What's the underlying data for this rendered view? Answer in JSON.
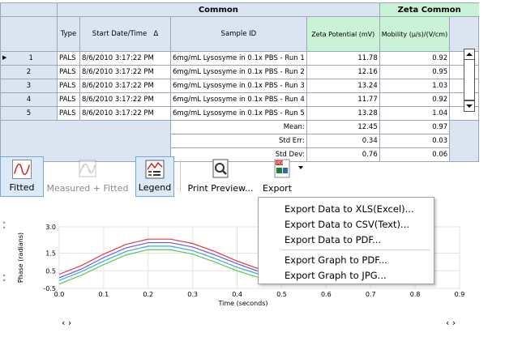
{
  "table": {
    "group_headers": {
      "common": "Common",
      "zeta": "Zeta Common"
    },
    "columns": {
      "type": "Type",
      "start": "Start Date/Time",
      "sort_glyph": "Δ",
      "sample": "Sample ID",
      "zeta": "Zeta Potential (mV)",
      "mobility": "Mobility (µ/s)/(V/cm)"
    },
    "rows": [
      {
        "num": "1",
        "type": "PALS",
        "start": "8/6/2010 3:17:22 PM",
        "sample": "6mg/mL Lysosyme in 0.1x PBS - Run 1",
        "zeta": "11.78",
        "mobility": "0.92"
      },
      {
        "num": "2",
        "type": "PALS",
        "start": "8/6/2010 3:17:22 PM",
        "sample": "6mg/mL Lysosyme in 0.1x PBS - Run 2",
        "zeta": "12.16",
        "mobility": "0.95"
      },
      {
        "num": "3",
        "type": "PALS",
        "start": "8/6/2010 3:17:22 PM",
        "sample": "6mg/mL Lysosyme in 0.1x PBS - Run 3",
        "zeta": "13.24",
        "mobility": "1.03"
      },
      {
        "num": "4",
        "type": "PALS",
        "start": "8/6/2010 3:17:22 PM",
        "sample": "6mg/mL Lysosyme in 0.1x PBS - Run 4",
        "zeta": "11.77",
        "mobility": "0.92"
      },
      {
        "num": "5",
        "type": "PALS",
        "start": "8/6/2010 3:17:22 PM",
        "sample": "6mg/mL Lysosyme in 0.1x PBS - Run 5",
        "zeta": "13.28",
        "mobility": "1.04"
      }
    ],
    "stats": [
      {
        "label": "Mean:",
        "zeta": "12.45",
        "mobility": "0.97"
      },
      {
        "label": "Std Err:",
        "zeta": "0.34",
        "mobility": "0.03"
      },
      {
        "label": "Std Dev:",
        "zeta": "0.76",
        "mobility": "0.06"
      }
    ],
    "row_indicator": "▶"
  },
  "toolbar": {
    "fitted": "Fitted",
    "measured_fitted": "Measured + Fitted",
    "legend": "Legend",
    "print_preview": "Print Preview...",
    "export": "Export",
    "export_icon_text": "PDF"
  },
  "export_menu": {
    "xls": "Export Data to XLS(Excel)...",
    "csv": "Export Data to CSV(Text)...",
    "pdf_data": "Export Data to PDF...",
    "pdf_graph": "Export Graph to PDF...",
    "jpg_graph": "Export Graph to JPG..."
  },
  "chart_data": {
    "type": "line",
    "xlabel": "Time (seconds)",
    "ylabel": "Phase (radians)",
    "xlim": [
      0.0,
      0.9
    ],
    "ylim": [
      -0.5,
      3.0
    ],
    "x_ticks": [
      "0.0",
      "0.1",
      "0.2",
      "0.3",
      "0.4",
      "0.5",
      "0.6",
      "0.7",
      "0.8",
      "0.9"
    ],
    "y_ticks": [
      "-0.5",
      "0.5",
      "1.5",
      "3.0"
    ],
    "y_tick_values": [
      -0.5,
      0.5,
      1.5,
      3.0
    ],
    "grid": true,
    "series": [
      {
        "color": "#e03a3a",
        "values": {
          "x": [
            0.0,
            0.05,
            0.1,
            0.15,
            0.2,
            0.25,
            0.3,
            0.35,
            0.4,
            0.45,
            0.5
          ],
          "y": [
            0.3,
            0.8,
            1.45,
            2.0,
            2.3,
            2.3,
            2.05,
            1.6,
            1.05,
            0.6,
            0.3
          ]
        }
      },
      {
        "color": "#6b5be0",
        "values": {
          "x": [
            0.0,
            0.05,
            0.1,
            0.15,
            0.2,
            0.25,
            0.3,
            0.35,
            0.4,
            0.45,
            0.5
          ],
          "y": [
            0.1,
            0.6,
            1.25,
            1.8,
            2.1,
            2.1,
            1.85,
            1.4,
            0.9,
            0.45,
            0.15
          ]
        }
      },
      {
        "color": "#3aa7e0",
        "values": {
          "x": [
            0.0,
            0.05,
            0.1,
            0.15,
            0.2,
            0.25,
            0.3,
            0.35,
            0.4,
            0.45,
            0.5
          ],
          "y": [
            -0.05,
            0.45,
            1.05,
            1.6,
            1.9,
            1.9,
            1.65,
            1.2,
            0.7,
            0.3,
            0.0
          ]
        }
      },
      {
        "color": "#5ac94a",
        "values": {
          "x": [
            0.0,
            0.05,
            0.1,
            0.15,
            0.2,
            0.25,
            0.3,
            0.35,
            0.4,
            0.45,
            0.5
          ],
          "y": [
            -0.25,
            0.25,
            0.85,
            1.4,
            1.7,
            1.7,
            1.45,
            1.0,
            0.5,
            0.1,
            -0.2
          ]
        }
      }
    ]
  },
  "scroll_arrows": {
    "left_right": "‹ ›",
    "up": "˄",
    "down": "˅"
  }
}
